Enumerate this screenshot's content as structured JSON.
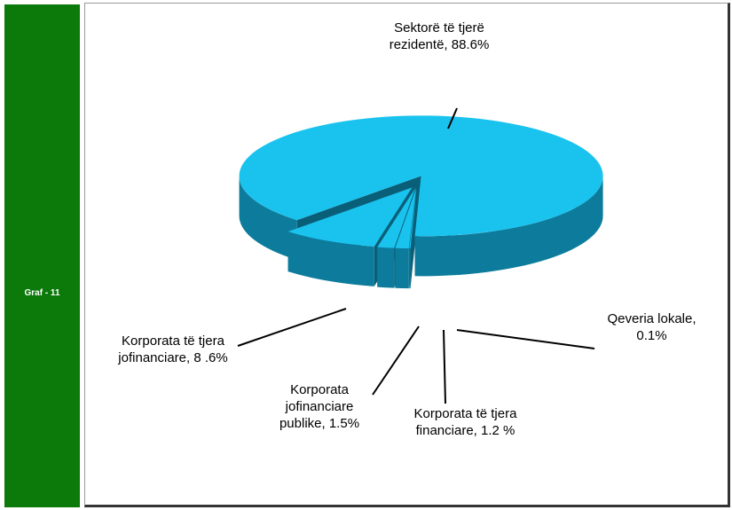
{
  "sidebar_label": "Graf - 11",
  "chart_data": {
    "type": "pie3d",
    "labels": [
      "Sektorë të tjerë rezidentë, 88.6%",
      "Qeveria lokale, 0.1%",
      "Korporata të tjera financiare, 1.2 %",
      "Korporata jofinanciare publike, 1.5%",
      "Korporata të tjera jofinanciare, 8 .6%"
    ],
    "values": [
      88.6,
      0.1,
      1.2,
      1.5,
      8.6
    ],
    "color": "#19c3ee",
    "side_color": "#0d7c9c",
    "wall_color": "#0a5f78"
  }
}
